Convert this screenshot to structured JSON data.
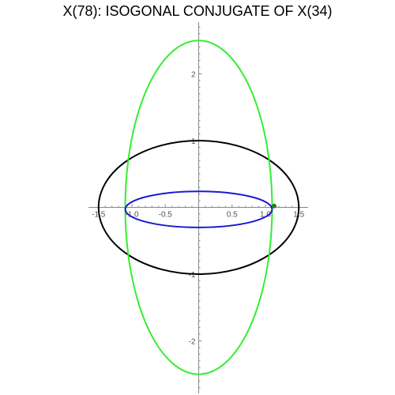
{
  "title": "X(78): ISOGONAL CONJUGATE OF X(34)",
  "chart_data": {
    "type": "parametric-curves",
    "title": "X(78): ISOGONAL CONJUGATE OF X(34)",
    "xlim": [
      -1.5,
      1.5
    ],
    "ylim": [
      -2.75,
      2.75
    ],
    "x_ticks": [
      {
        "value": -1.5,
        "label": "-1.5"
      },
      {
        "value": -1.0,
        "label": "-1.0"
      },
      {
        "value": -0.5,
        "label": "-0.5"
      },
      {
        "value": 0.5,
        "label": "0.5"
      },
      {
        "value": 1.0,
        "label": "1.0"
      },
      {
        "value": 1.5,
        "label": "1.5"
      }
    ],
    "y_ticks": [
      {
        "value": 2,
        "label": "2"
      },
      {
        "value": 1,
        "label": "1"
      },
      {
        "value": -1,
        "label": "-1"
      },
      {
        "value": -2,
        "label": "-2"
      }
    ],
    "curves": [
      {
        "shape": "ellipse",
        "color": "#000000",
        "cx": 0,
        "cy": 0.0,
        "rx": 1.5,
        "ry": 1.0
      },
      {
        "shape": "ellipse",
        "color": "#33ee33",
        "cx": 0,
        "cy": 0.0,
        "rx": 1.1,
        "ry": 2.5
      },
      {
        "shape": "ellipse",
        "color": "#1a1ad0",
        "cx": 0,
        "cy": -0.03,
        "rx": 1.1,
        "ry": 0.27
      }
    ],
    "points": [
      {
        "color": "#2a7a2a",
        "x": 1.13,
        "y": 0.02
      }
    ],
    "grid": false
  }
}
